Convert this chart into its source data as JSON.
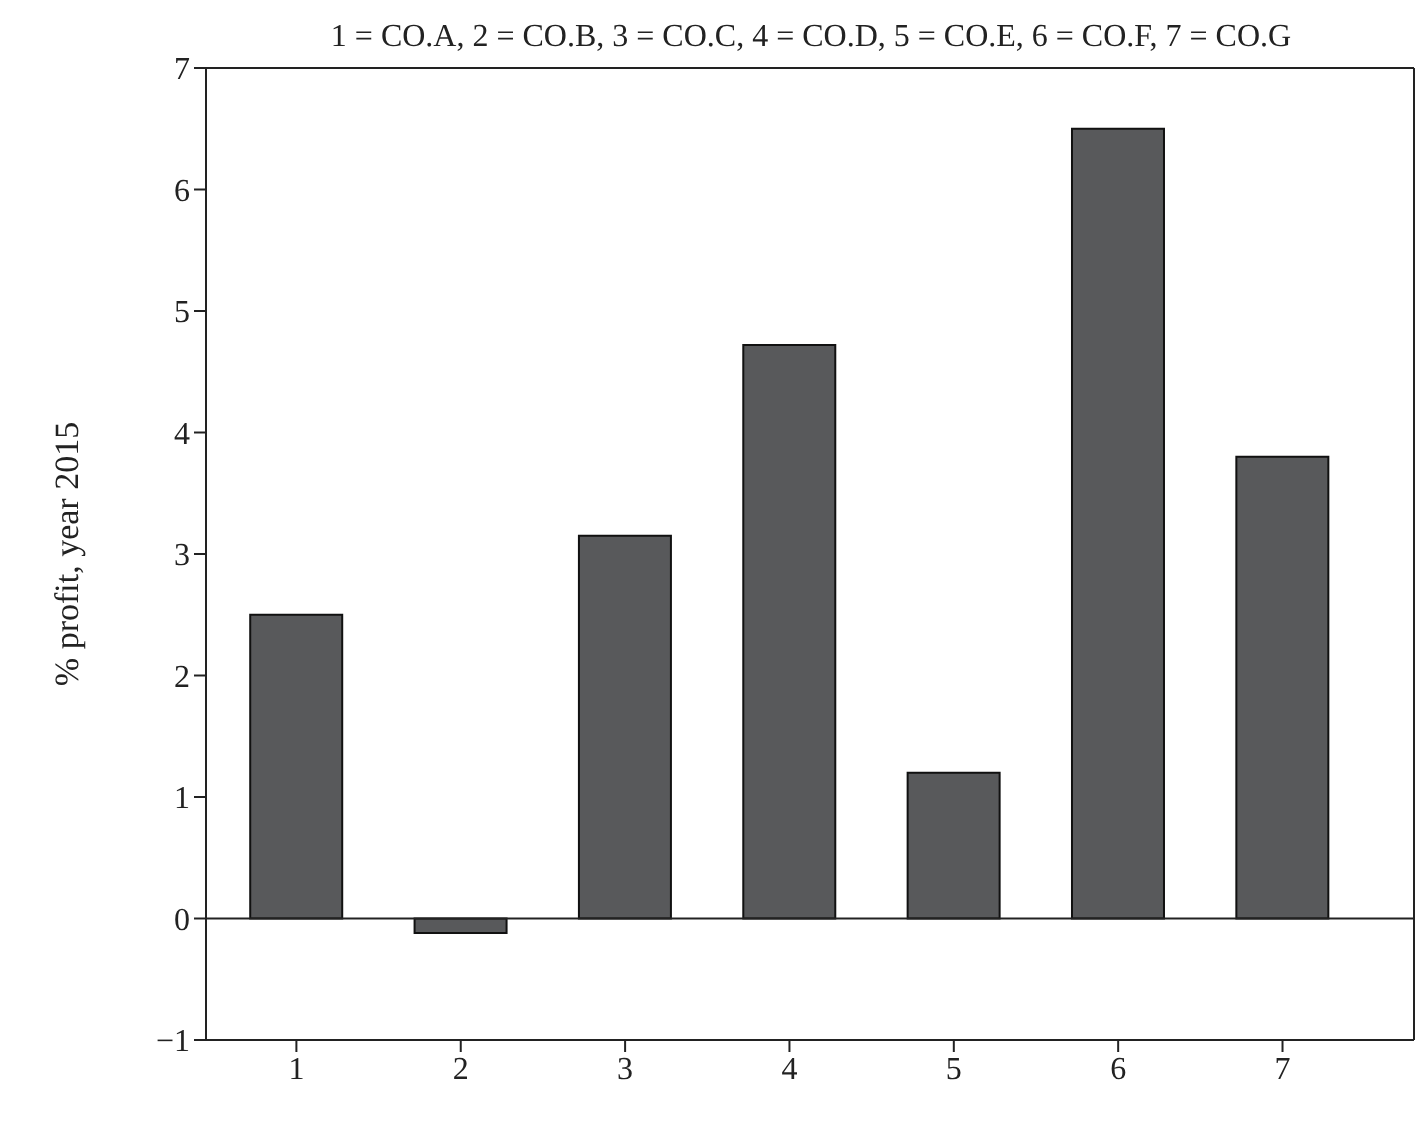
{
  "chart_data": {
    "type": "bar",
    "title": "1 = CO.A, 2 = CO.B, 3 = CO.C, 4 = CO.D, 5 = CO.E, 6 = CO.F, 7 = CO.G",
    "ylabel": "% profit, year 2015",
    "x": [
      1,
      2,
      3,
      4,
      5,
      6,
      7
    ],
    "values": [
      2.5,
      -0.12,
      3.15,
      4.72,
      1.2,
      6.5,
      3.8
    ],
    "color": "#58595b",
    "xlim": [
      0.45,
      7.8
    ],
    "xticks": [
      1,
      2,
      3,
      4,
      5,
      6,
      7
    ],
    "ylim": [
      -1,
      7
    ],
    "yticks": [
      {
        "value": -1,
        "label": "−1"
      },
      0,
      1,
      2,
      3,
      4,
      5,
      6,
      7
    ],
    "ref_lines": [
      {
        "axis": "y",
        "value": 0
      }
    ],
    "grid": false,
    "legend": false
  }
}
